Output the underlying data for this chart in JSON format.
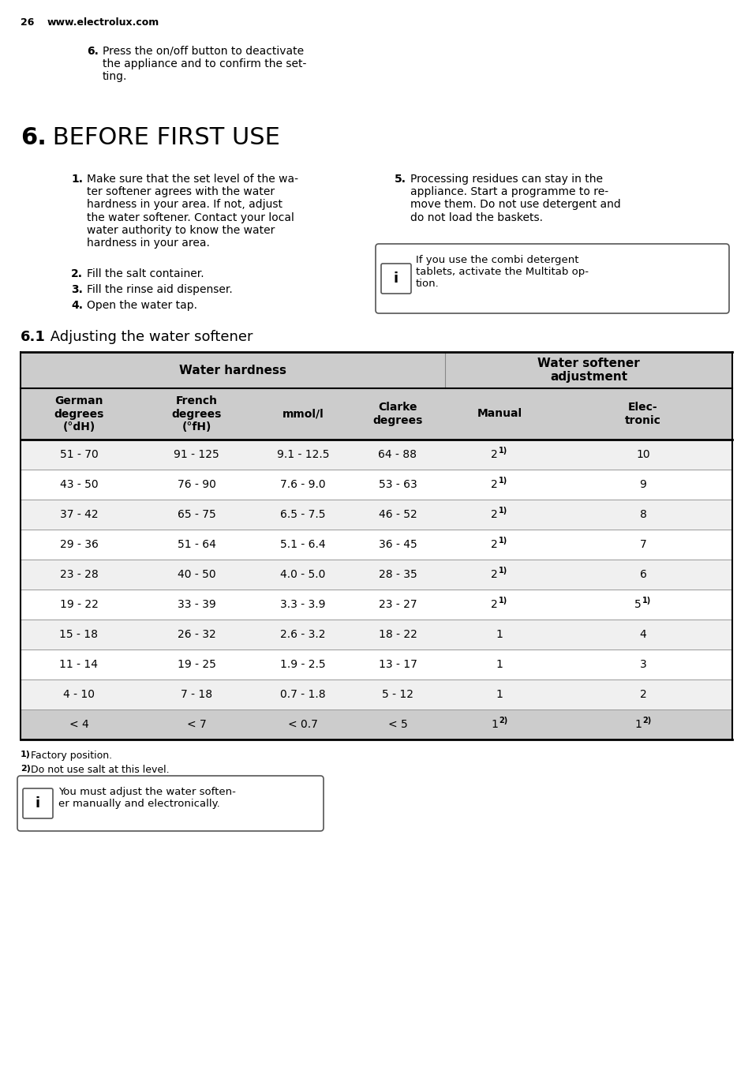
{
  "page_num": "26",
  "website": "www.electrolux.com",
  "bg_color": "#ffffff",
  "table_header_bg": "#cccccc",
  "table_row_bg": "#f0f0f0",
  "table_alt_bg": "#ffffff",
  "table_last_bg": "#cccccc",
  "rows": [
    [
      "51 - 70",
      "91 - 125",
      "9.1 - 12.5",
      "64 - 88",
      "2",
      "1)",
      "10",
      ""
    ],
    [
      "43 - 50",
      "76 - 90",
      "7.6 - 9.0",
      "53 - 63",
      "2",
      "1)",
      "9",
      ""
    ],
    [
      "37 - 42",
      "65 - 75",
      "6.5 - 7.5",
      "46 - 52",
      "2",
      "1)",
      "8",
      ""
    ],
    [
      "29 - 36",
      "51 - 64",
      "5.1 - 6.4",
      "36 - 45",
      "2",
      "1)",
      "7",
      ""
    ],
    [
      "23 - 28",
      "40 - 50",
      "4.0 - 5.0",
      "28 - 35",
      "2",
      "1)",
      "6",
      ""
    ],
    [
      "19 - 22",
      "33 - 39",
      "3.3 - 3.9",
      "23 - 27",
      "2",
      "1)",
      "5",
      "1)"
    ],
    [
      "15 - 18",
      "26 - 32",
      "2.6 - 3.2",
      "18 - 22",
      "1",
      "",
      "4",
      ""
    ],
    [
      "11 - 14",
      "19 - 25",
      "1.9 - 2.5",
      "13 - 17",
      "1",
      "",
      "3",
      ""
    ],
    [
      "4 - 10",
      "7 - 18",
      "0.7 - 1.8",
      "5 - 12",
      "1",
      "",
      "2",
      ""
    ],
    [
      "< 4",
      "< 7",
      "< 0.7",
      "< 5",
      "1",
      "2)",
      "1",
      "2)"
    ]
  ]
}
